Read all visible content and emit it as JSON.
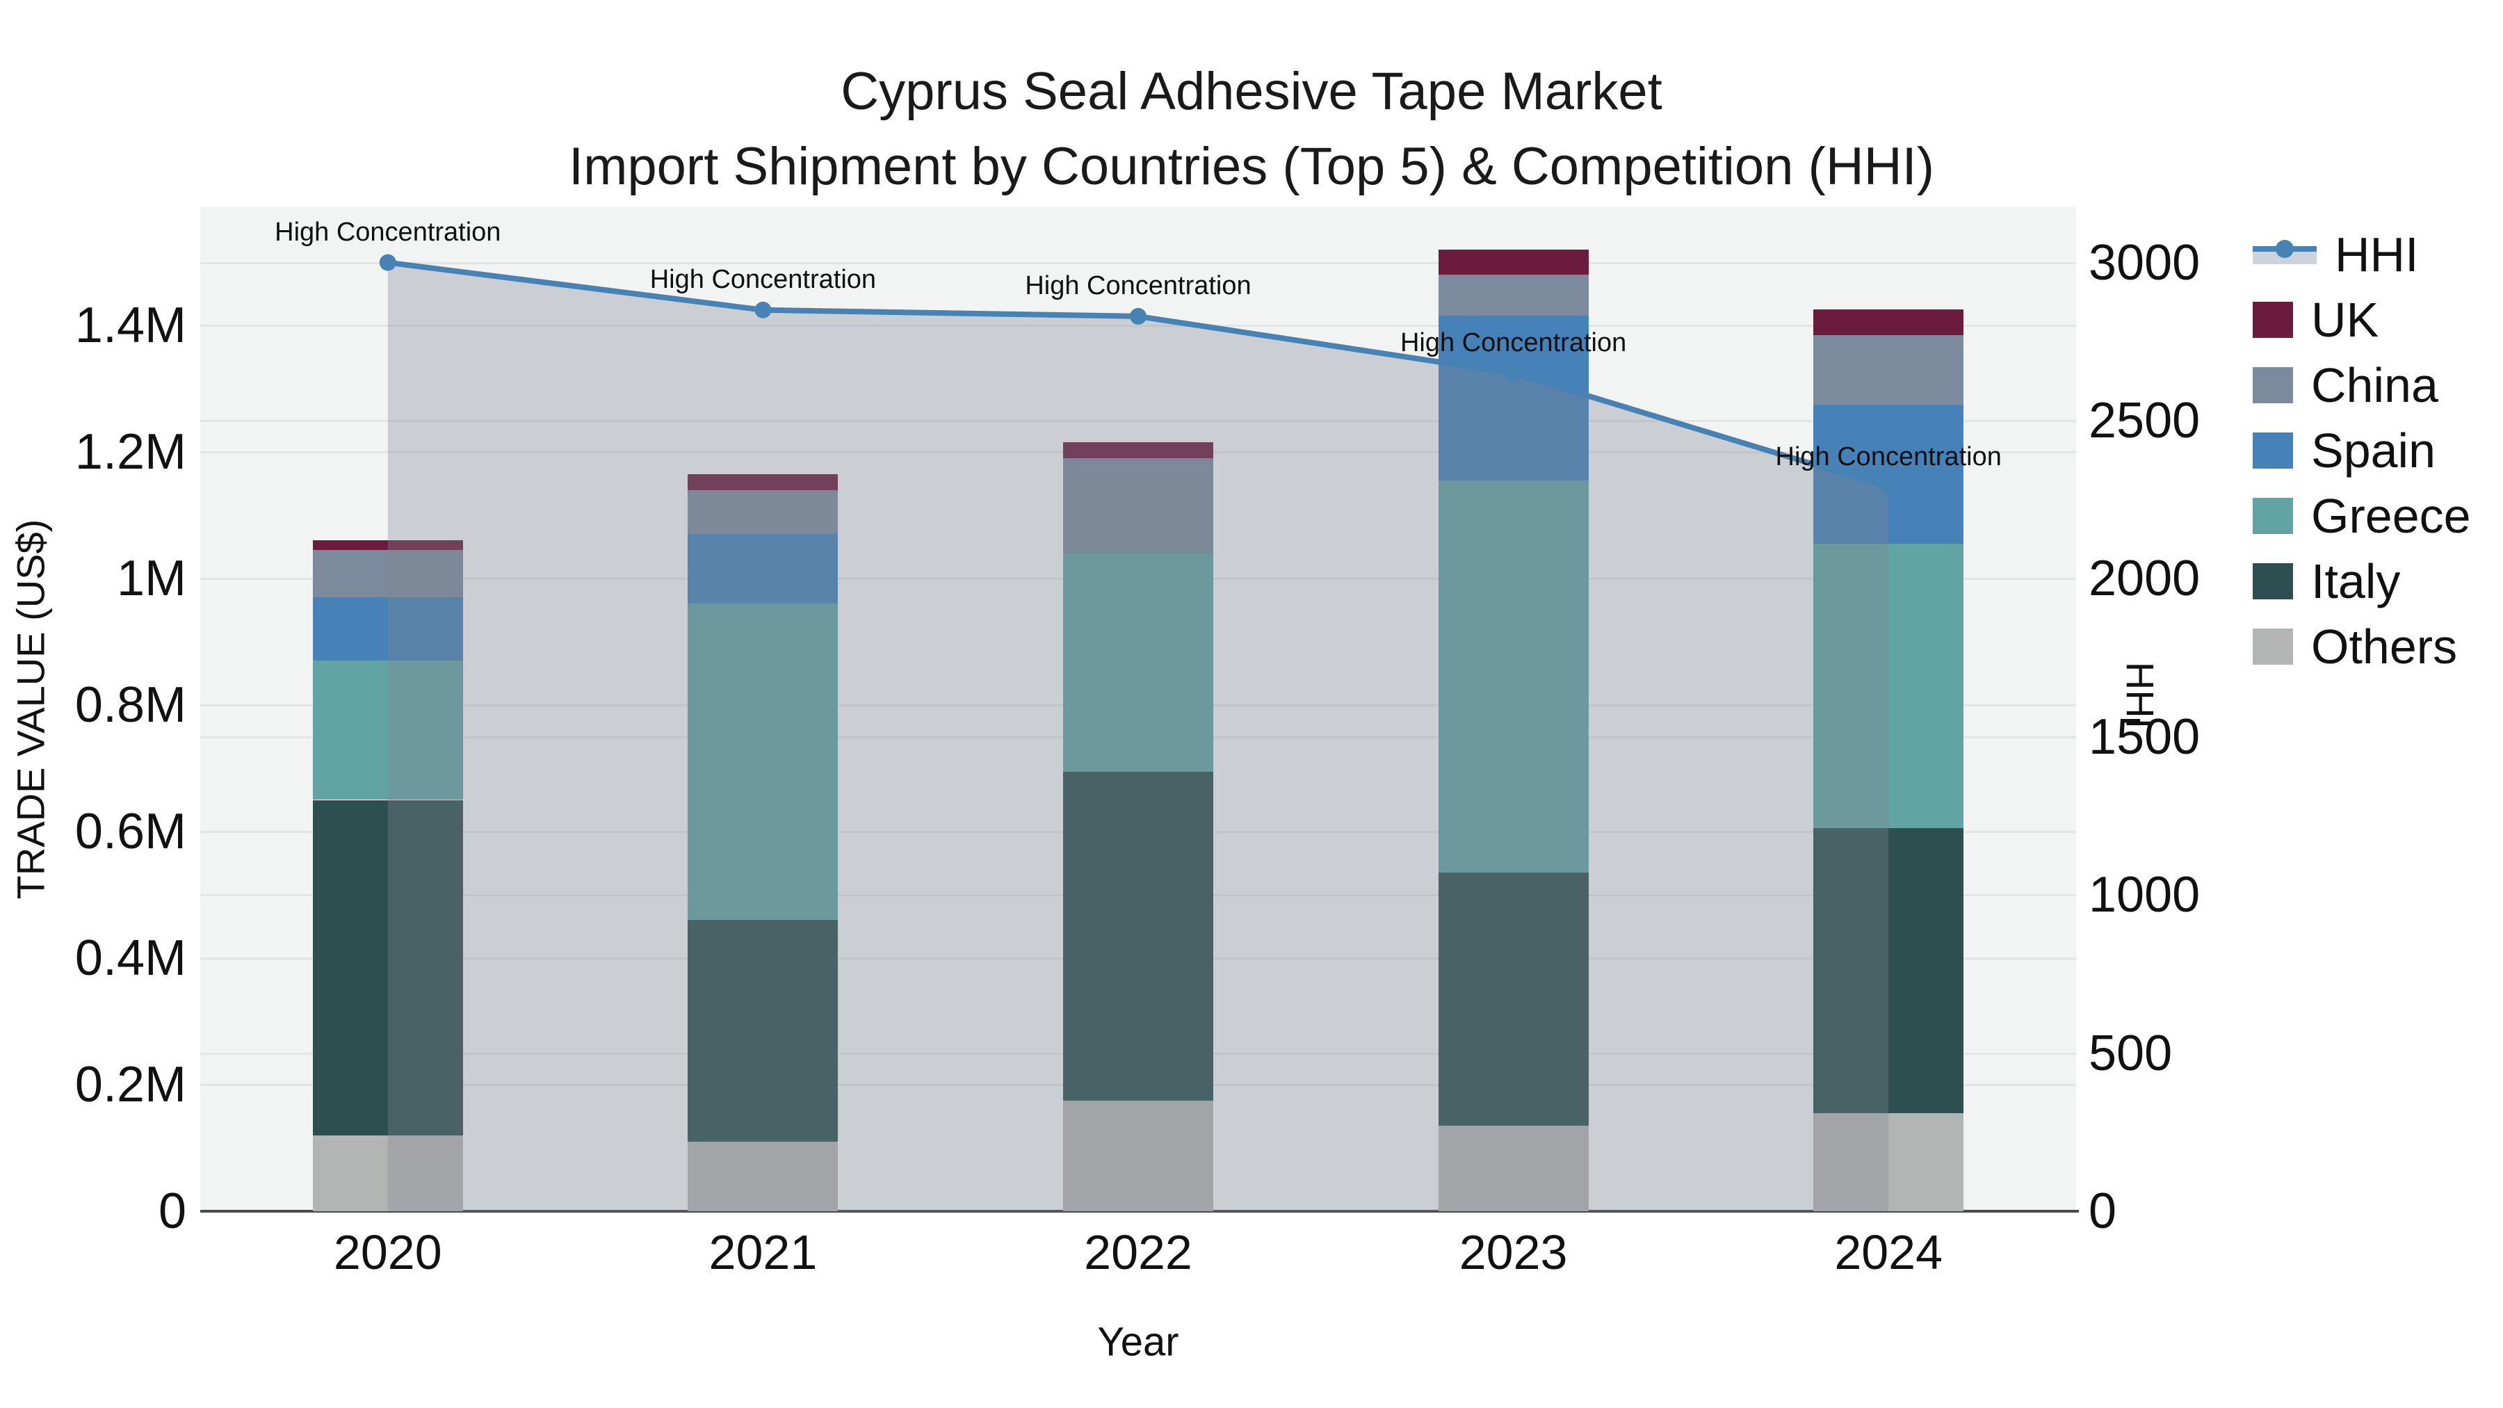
{
  "title": {
    "line1": "Cyprus Seal Adhesive Tape Market",
    "line2": "Import Shipment by Countries (Top 5) & Competition (HHI)"
  },
  "axes": {
    "x": {
      "title": "Year",
      "tick_labels": [
        "2020",
        "2021",
        "2022",
        "2023",
        "2024"
      ]
    },
    "y_left": {
      "title": "TRADE VALUE (US$)",
      "tick_labels": [
        "0",
        "0.2M",
        "0.4M",
        "0.6M",
        "0.8M",
        "1M",
        "1.2M",
        "1.4M"
      ]
    },
    "y_right": {
      "title": "HHI",
      "tick_labels": [
        "0",
        "500",
        "1000",
        "1500",
        "2000",
        "2500",
        "3000"
      ]
    }
  },
  "legend": {
    "items": [
      {
        "label": "HHI",
        "swatch": "line",
        "color": "#4682b4",
        "band_color": "#ccd3dd"
      },
      {
        "label": "UK",
        "swatch": "rect",
        "color": "#6b1c3d"
      },
      {
        "label": "China",
        "swatch": "rect",
        "color": "#7b8b9d"
      },
      {
        "label": "Spain",
        "swatch": "rect",
        "color": "#4681b8"
      },
      {
        "label": "Greece",
        "swatch": "rect",
        "color": "#62a3a4"
      },
      {
        "label": "Italy",
        "swatch": "rect",
        "color": "#2d4f50"
      },
      {
        "label": "Others",
        "swatch": "rect",
        "color": "#b3b4b4"
      }
    ]
  },
  "colors": {
    "plot_bg": "#f2f3f3",
    "grid": "#e3e4e4",
    "axis_line": "#4a4a4a",
    "hhi_line": "#4682b4",
    "hhi_area": "rgba(130,136,148,0.34)"
  },
  "chart_data": {
    "type": "bar+line",
    "title": "Cyprus Seal Adhesive Tape Market — Import Shipment by Countries (Top 5) & Competition (HHI)",
    "categories": [
      "2020",
      "2021",
      "2022",
      "2023",
      "2024"
    ],
    "bar_value_unit": "M US$ trade value",
    "stack_order_bottom_to_top": [
      "Others",
      "Italy",
      "Greece",
      "Spain",
      "China",
      "UK"
    ],
    "series": [
      {
        "name": "Others",
        "color": "#b3b4b4",
        "values": [
          0.12,
          0.11,
          0.175,
          0.135,
          0.155
        ]
      },
      {
        "name": "Italy",
        "color": "#2d4f50",
        "values": [
          0.53,
          0.35,
          0.52,
          0.4,
          0.45
        ]
      },
      {
        "name": "Greece",
        "color": "#62a3a4",
        "values": [
          0.22,
          0.5,
          0.345,
          0.62,
          0.45
        ]
      },
      {
        "name": "Spain",
        "color": "#4681b8",
        "values": [
          0.1,
          0.11,
          0.0,
          0.26,
          0.22
        ]
      },
      {
        "name": "China",
        "color": "#7b8b9d",
        "values": [
          0.075,
          0.07,
          0.15,
          0.065,
          0.11
        ]
      },
      {
        "name": "UK",
        "color": "#6b1c3d",
        "values": [
          0.015,
          0.025,
          0.025,
          0.04,
          0.04
        ]
      }
    ],
    "bar_totals": [
      1.06,
      1.165,
      1.215,
      1.52,
      1.425
    ],
    "line_series": {
      "name": "HHI",
      "axis": "right",
      "color": "#4682b4",
      "area_color": "rgba(130,136,148,0.34)",
      "values": [
        3000,
        2850,
        2830,
        2650,
        2290
      ]
    },
    "point_annotations": [
      "High Concentration",
      "High Concentration",
      "High Concentration",
      "High Concentration",
      "High Concentration"
    ],
    "xlabel": "Year",
    "ylabel_left": "TRADE VALUE (US$)",
    "ylabel_right": "HHI",
    "ylim_left": [
      0,
      1.59
    ],
    "ylim_right": [
      0,
      3175
    ],
    "grid": true,
    "legend_position": "right"
  }
}
